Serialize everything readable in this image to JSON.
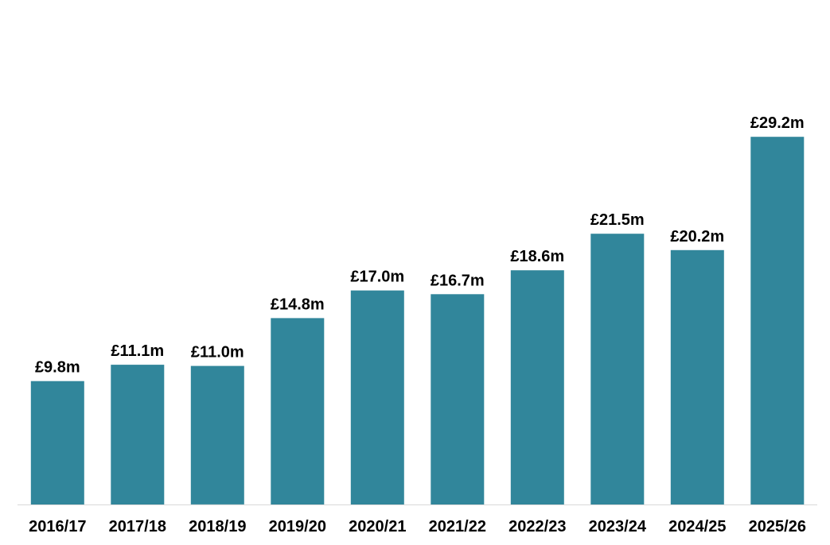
{
  "chart_data": {
    "type": "bar",
    "categories": [
      "2016/17",
      "2017/18",
      "2018/19",
      "2019/20",
      "2020/21",
      "2021/22",
      "2022/23",
      "2023/24",
      "2024/25",
      "2025/26"
    ],
    "values": [
      9.8,
      11.1,
      11.0,
      14.8,
      17.0,
      16.7,
      18.6,
      21.5,
      20.2,
      29.2
    ],
    "data_labels": [
      "£9.8m",
      "£11.1m",
      "£11.0m",
      "£14.8m",
      "£17.0m",
      "£16.7m",
      "£18.6m",
      "£21.5m",
      "£20.2m",
      "£29.2m"
    ],
    "title": "",
    "xlabel": "",
    "ylabel": "",
    "ylim": [
      0,
      35
    ],
    "grid": false,
    "legend": "none",
    "bar_color": "#31869b",
    "axis_color": "#d9d9d9"
  }
}
